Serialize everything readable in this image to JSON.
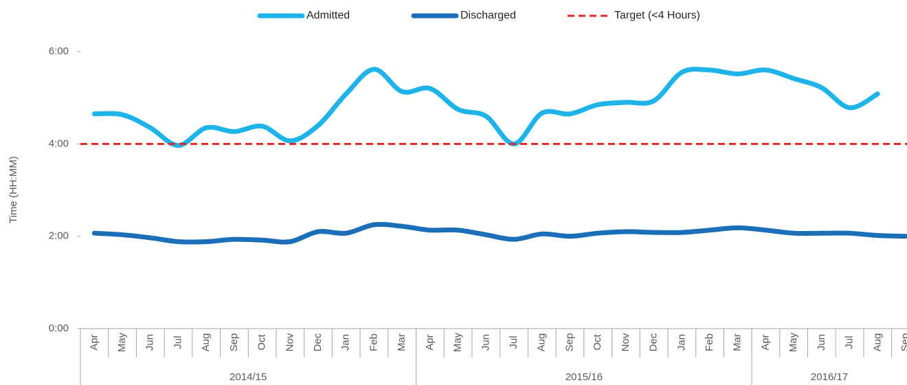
{
  "chart_data": {
    "type": "line",
    "y_label": "Time (HH:MM)",
    "categories": [
      "Apr",
      "May",
      "Jun",
      "Jul",
      "Aug",
      "Sep",
      "Oct",
      "Nov",
      "Dec",
      "Jan",
      "Feb",
      "Mar",
      "Apr",
      "May",
      "Jun",
      "Jul",
      "Aug",
      "Sep",
      "Oct",
      "Nov",
      "Dec",
      "Jan",
      "Feb",
      "Mar",
      "Apr",
      "May",
      "Jun",
      "Jul",
      "Aug",
      "Sep"
    ],
    "category_groups": [
      {
        "label": "2014/15",
        "size": 12
      },
      {
        "label": "2015/16",
        "size": 12
      },
      {
        "label": "2016/17",
        "size": 6
      }
    ],
    "series": [
      {
        "name": "Admitted",
        "color": "#1fb4e9",
        "style": "solid",
        "smooth": true,
        "values": [
          279,
          278,
          261,
          238,
          261,
          256,
          263,
          244,
          264,
          305,
          337,
          308,
          312,
          285,
          276,
          240,
          280,
          279,
          291,
          294,
          296,
          333,
          336,
          331,
          336,
          325,
          313,
          287,
          305,
          null
        ]
      },
      {
        "name": "Discharged",
        "color": "#1a6fb8",
        "style": "solid",
        "smooth": true,
        "values": [
          124,
          122,
          118,
          113,
          113,
          116,
          115,
          113,
          126,
          124,
          135,
          133,
          128,
          128,
          122,
          116,
          123,
          120,
          124,
          126,
          125,
          125,
          128,
          131,
          128,
          124,
          124,
          124,
          121,
          120
        ]
      },
      {
        "name": "Target (<4 Hours)",
        "color": "#e8242a",
        "style": "dashed",
        "smooth": false,
        "values": [
          240,
          240,
          240,
          240,
          240,
          240,
          240,
          240,
          240,
          240,
          240,
          240,
          240,
          240,
          240,
          240,
          240,
          240,
          240,
          240,
          240,
          240,
          240,
          240,
          240,
          240,
          240,
          240,
          240,
          240
        ]
      }
    ],
    "ylim": [
      0,
      360
    ],
    "yticks": [
      {
        "value": 0,
        "label": "0:00"
      },
      {
        "value": 120,
        "label": "2:00"
      },
      {
        "value": 240,
        "label": "4:00"
      },
      {
        "value": 360,
        "label": "6:00"
      }
    ],
    "grid": false
  }
}
